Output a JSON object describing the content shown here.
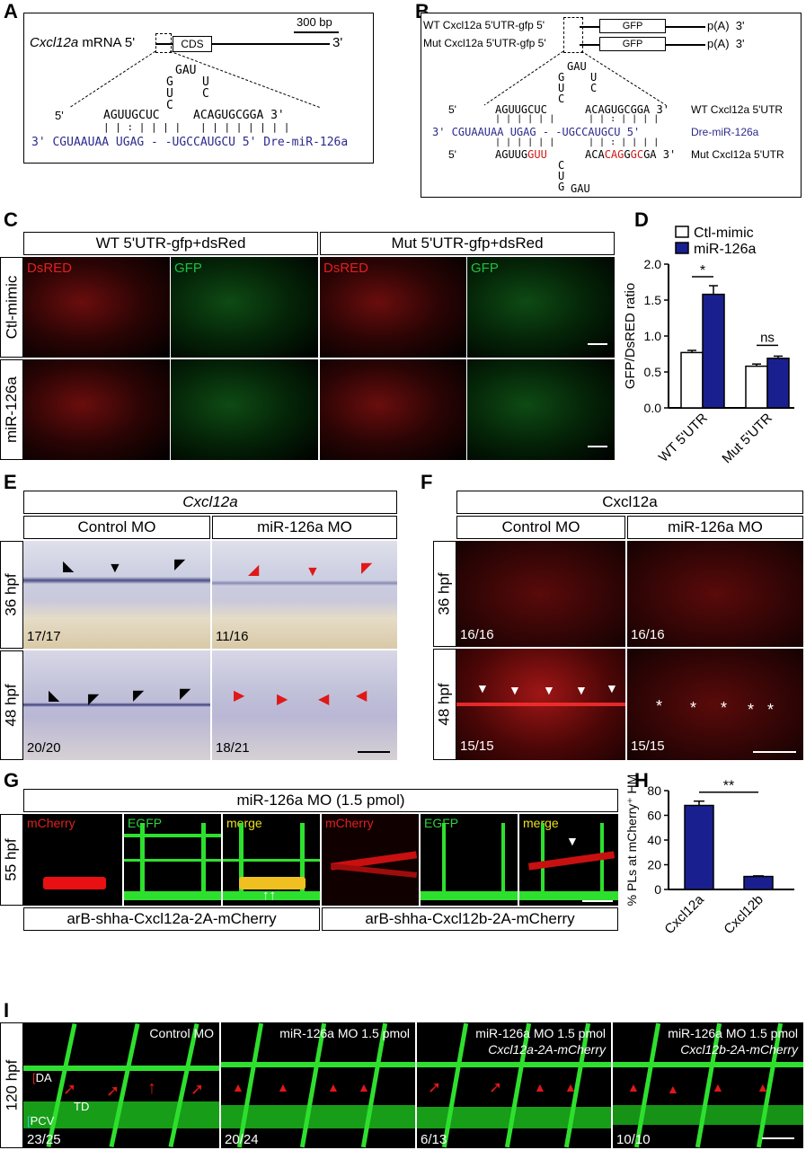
{
  "panels": {
    "A": {
      "label": "A",
      "mrna_label": "Cxcl12a",
      "mrna_suffix": "mRNA 5'",
      "three_prime": "3'",
      "cds": "CDS",
      "scale": "300 bp",
      "loop_top": "GAU",
      "loop_left1": "G",
      "loop_left2": "U",
      "loop_left3": "C",
      "loop_right1": "U",
      "loop_right2": "C",
      "utr_5": "5'",
      "utr_seq": "AGUUGCUC",
      "utr_seq2": "ACAGUGCGGA 3'",
      "bars1": "| | : | | | |",
      "bars2": "| | | | | | | |",
      "mirna": "3' CGUAAUAA UGAG - -UGCCAUGCU 5' Dre-miR-126a"
    },
    "B": {
      "label": "B",
      "wt_construct": "WT Cxcl12a 5'UTR-gfp 5'",
      "mut_construct": "Mut Cxcl12a 5'UTR-gfp 5'",
      "gfp": "GFP",
      "polya": "p(A)",
      "three": "3'",
      "loop_top": "GAU",
      "loop_g": "G",
      "loop_u": "U",
      "loop_c": "C",
      "loop_u2": "U",
      "loop_c2": "C",
      "wt_5": "5'",
      "wt_seq": "AGUUGCUC",
      "wt_seq2": "ACAGUGCGGA 3'",
      "wt_name": "WT Cxcl12a 5'UTR",
      "mir_seq": "3' CGUAAUAA UGAG - -UGCCAUGCU 5'",
      "mir_name": "Dre-miR-126a",
      "mut_5": "5'",
      "mut_seq_a": "AGUUG",
      "mut_seq_b": "GUU",
      "mut_seq_c": "ACA",
      "mut_seq_d": "CAG",
      "mut_seq_e": "G",
      "mut_seq_f": "GC",
      "mut_seq_g": "GA 3'",
      "mut_name": "Mut Cxcl12a 5'UTR",
      "mloop_c": "C",
      "mloop_u": "U",
      "mloop_g": "G",
      "mloop_gau": "GAU",
      "bars": "| | | | | |",
      "bars2": "| | : | | | |"
    },
    "C": {
      "label": "C",
      "header_wt": "WT 5'UTR-gfp+dsRed",
      "header_mut": "Mut 5'UTR-gfp+dsRed",
      "row1": "Ctl-mimic",
      "row2": "miR-126a",
      "dsred": "DsRED",
      "gfp": "GFP"
    },
    "D": {
      "label": "D",
      "sig1": "*",
      "sig2": "ns"
    },
    "E": {
      "label": "E",
      "gene": "Cxcl12a",
      "col1": "Control MO",
      "col2": "miR-126a MO",
      "row1": "36 hpf",
      "row2": "48 hpf",
      "n1": "17/17",
      "n2": "11/16",
      "n3": "20/20",
      "n4": "18/21"
    },
    "F": {
      "label": "F",
      "gene": "Cxcl12a",
      "col1": "Control MO",
      "col2": "miR-126a MO",
      "row1": "36 hpf",
      "row2": "48 hpf",
      "n1": "16/16",
      "n2": "16/16",
      "n3": "15/15",
      "n4": "15/15"
    },
    "G": {
      "label": "G",
      "header": "miR-126a MO (1.5 pmol)",
      "row": "55 hpf",
      "mcherry": "mCherry",
      "egfp": "EGFP",
      "merge": "merge",
      "footer1": "arB-shha-Cxcl12a-2A-mCherry",
      "footer2": "arB-shha-Cxcl12b-2A-mCherry"
    },
    "H": {
      "label": "H",
      "sig": "**"
    },
    "I": {
      "label": "I",
      "row": "120 hpf",
      "t1": "Control MO",
      "t2": "miR-126a MO 1.5 pmol",
      "t3": "miR-126a MO 1.5 pmol",
      "t3b": "Cxcl12a-2A-mCherry",
      "t4": "miR-126a MO 1.5 pmol",
      "t4b": "Cxcl12b-2A-mCherry",
      "da": "DA",
      "td": "TD",
      "pcv": "PCV",
      "n1": "23/25",
      "n2": "20/24",
      "n3": "6/13",
      "n4": "10/10"
    }
  },
  "chart_data": [
    {
      "type": "bar",
      "panel": "D",
      "categories": [
        "WT 5'UTR",
        "Mut 5'UTR"
      ],
      "series": [
        {
          "name": "Ctl-mimic",
          "values": [
            0.77,
            0.58
          ],
          "errors": [
            0.03,
            0.03
          ],
          "color": "#ffffff"
        },
        {
          "name": "miR-126a",
          "values": [
            1.58,
            0.69
          ],
          "errors": [
            0.12,
            0.03
          ],
          "color": "#1a1f8f"
        }
      ],
      "ylabel": "GFP/DsRED ratio",
      "ylim": [
        0,
        2.0
      ],
      "yticks": [
        "0.0",
        "0.5",
        "1.0",
        "1.5",
        "2.0"
      ],
      "legend": "top"
    },
    {
      "type": "bar",
      "panel": "H",
      "categories": [
        "Cxcl12a",
        "Cxcl12b"
      ],
      "values": [
        68,
        10.5
      ],
      "errors": [
        3.5,
        0.5
      ],
      "color": "#1a1f8f",
      "ylabel": "% PLs at mCherry⁺ HM",
      "ylim": [
        0,
        80
      ],
      "yticks": [
        "0",
        "20",
        "40",
        "60",
        "80"
      ]
    }
  ]
}
